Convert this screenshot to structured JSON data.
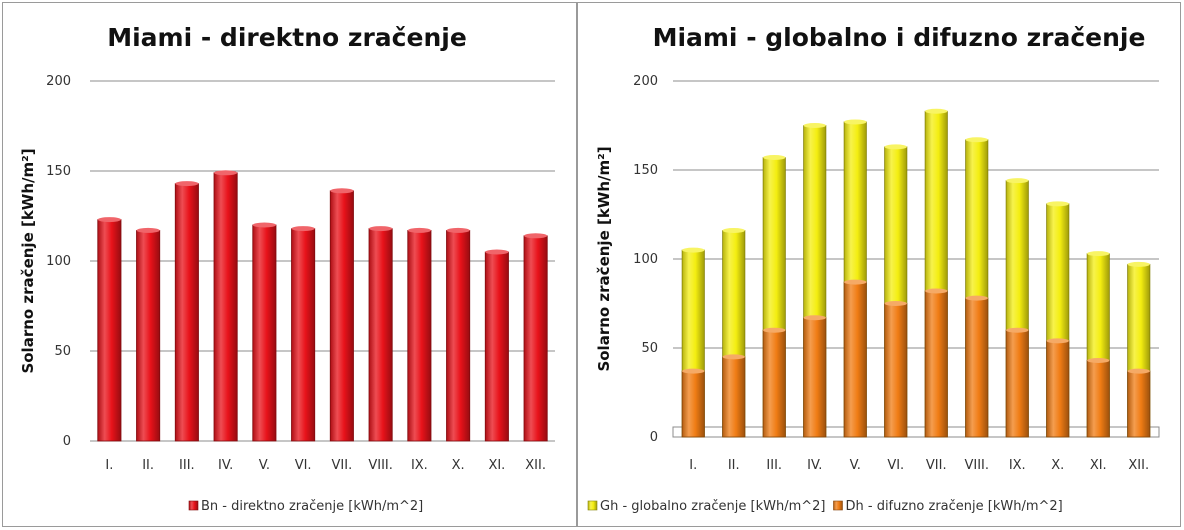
{
  "chart_data": [
    {
      "type": "bar",
      "title": "Miami - direktno zračenje",
      "ylabel": "Solarno zračenje [kWh/m²]",
      "xlabel": "",
      "ylim": [
        0,
        200
      ],
      "yticks": [
        0,
        50,
        100,
        150,
        200
      ],
      "grid": true,
      "legend_position": "bottom",
      "categories": [
        "I.",
        "II.",
        "III.",
        "IV.",
        "V.",
        "VI.",
        "VII.",
        "VIII.",
        "IX.",
        "X.",
        "XI.",
        "XII."
      ],
      "series": [
        {
          "name": "Bn - direktno zračenje [kWh/m^2]",
          "color": "#e8121a",
          "values": [
            123,
            117,
            143,
            149,
            120,
            118,
            139,
            118,
            117,
            117,
            105,
            114
          ]
        }
      ]
    },
    {
      "type": "bar",
      "title": "Miami - globalno i difuzno zračenje",
      "ylabel": "Solarno zračenje [kWh/m²]",
      "xlabel": "",
      "ylim": [
        0,
        200
      ],
      "yticks": [
        0,
        50,
        100,
        150,
        200
      ],
      "grid": true,
      "legend_position": "bottom",
      "categories": [
        "I.",
        "II.",
        "III.",
        "IV.",
        "V.",
        "VI.",
        "VII.",
        "VIII.",
        "IX.",
        "X.",
        "XI.",
        "XII."
      ],
      "series": [
        {
          "name": "Gh - globalno zračenje  [kWh/m^2]",
          "color": "#f4ee10",
          "values": [
            105,
            116,
            157,
            175,
            177,
            163,
            183,
            167,
            144,
            131,
            103,
            97
          ]
        },
        {
          "name": "Dh - difuzno zračenje [kWh/m^2]",
          "color": "#f07c14",
          "values": [
            37,
            45,
            60,
            67,
            87,
            75,
            82,
            78,
            60,
            54,
            43,
            37
          ]
        }
      ]
    }
  ]
}
